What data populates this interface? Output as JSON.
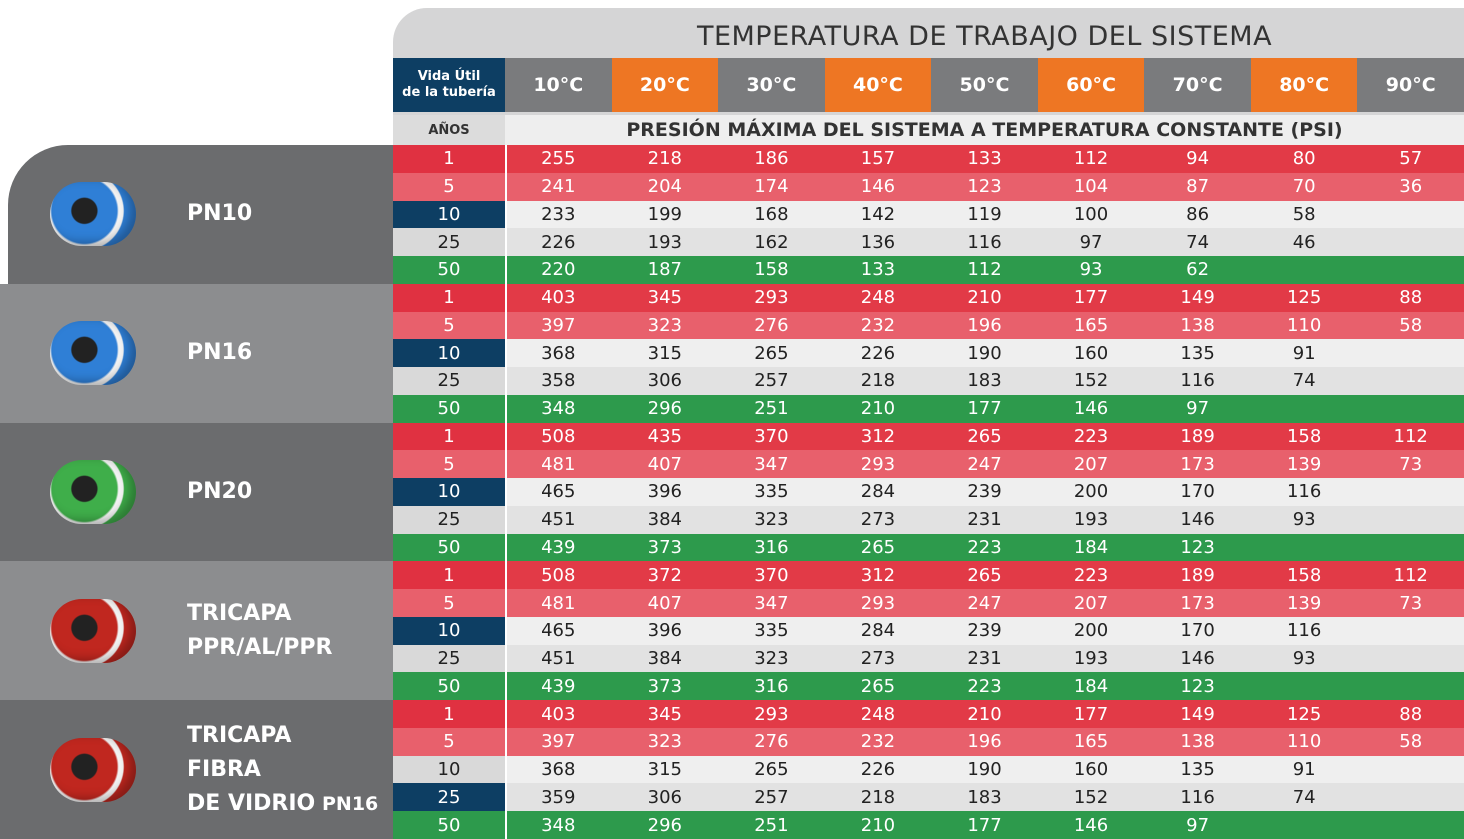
{
  "header": {
    "title": "TEMPERATURA DE TRABAJO DEL SISTEMA",
    "col_label": [
      "Vida Útil",
      "de la tubería"
    ],
    "years_label": "AÑOS",
    "subtitle": "PRESIÓN MÁXIMA DEL SISTEMA A TEMPERATURA CONSTANTE (PSI)"
  },
  "columns": [
    {
      "label": "10°C",
      "color": "#7a7b7d"
    },
    {
      "label": "20°C",
      "color": "#ee7623"
    },
    {
      "label": "30°C",
      "color": "#7a7b7d"
    },
    {
      "label": "40°C",
      "color": "#ee7623"
    },
    {
      "label": "50°C",
      "color": "#7a7b7d"
    },
    {
      "label": "60°C",
      "color": "#ee7623"
    },
    {
      "label": "70°C",
      "color": "#7a7b7d"
    },
    {
      "label": "80°C",
      "color": "#ee7623"
    },
    {
      "label": "90°C",
      "color": "#7a7b7d"
    }
  ],
  "groups": [
    {
      "name": [
        "PN10"
      ],
      "icon_color": "#2f7fd6",
      "rows": [
        {
          "years": 1,
          "values": [
            255,
            218,
            186,
            157,
            133,
            112,
            94,
            80,
            57
          ]
        },
        {
          "years": 5,
          "values": [
            241,
            204,
            174,
            146,
            123,
            104,
            87,
            70,
            36
          ]
        },
        {
          "years": 10,
          "values": [
            233,
            199,
            168,
            142,
            119,
            100,
            86,
            58,
            null
          ]
        },
        {
          "years": 25,
          "values": [
            226,
            193,
            162,
            136,
            116,
            97,
            74,
            46,
            null
          ]
        },
        {
          "years": 50,
          "values": [
            220,
            187,
            158,
            133,
            112,
            93,
            62,
            null,
            null
          ]
        }
      ]
    },
    {
      "name": [
        "PN16"
      ],
      "icon_color": "#2f7fd6",
      "rows": [
        {
          "years": 1,
          "values": [
            403,
            345,
            293,
            248,
            210,
            177,
            149,
            125,
            88
          ]
        },
        {
          "years": 5,
          "values": [
            397,
            323,
            276,
            232,
            196,
            165,
            138,
            110,
            58
          ]
        },
        {
          "years": 10,
          "values": [
            368,
            315,
            265,
            226,
            190,
            160,
            135,
            91,
            null
          ]
        },
        {
          "years": 25,
          "values": [
            358,
            306,
            257,
            218,
            183,
            152,
            116,
            74,
            null
          ]
        },
        {
          "years": 50,
          "values": [
            348,
            296,
            251,
            210,
            177,
            146,
            97,
            null,
            null
          ]
        }
      ]
    },
    {
      "name": [
        "PN20"
      ],
      "icon_color": "#3fae4a",
      "rows": [
        {
          "years": 1,
          "values": [
            508,
            435,
            370,
            312,
            265,
            223,
            189,
            158,
            112
          ]
        },
        {
          "years": 5,
          "values": [
            481,
            407,
            347,
            293,
            247,
            207,
            173,
            139,
            73
          ]
        },
        {
          "years": 10,
          "values": [
            465,
            396,
            335,
            284,
            239,
            200,
            170,
            116,
            null
          ]
        },
        {
          "years": 25,
          "values": [
            451,
            384,
            323,
            273,
            231,
            193,
            146,
            93,
            null
          ]
        },
        {
          "years": 50,
          "values": [
            439,
            373,
            316,
            265,
            223,
            184,
            123,
            null,
            null
          ]
        }
      ]
    },
    {
      "name": [
        "TRICAPA",
        "PPR/AL/PPR"
      ],
      "icon_color": "#c0271f",
      "rows": [
        {
          "years": 1,
          "values": [
            508,
            372,
            370,
            312,
            265,
            223,
            189,
            158,
            112
          ]
        },
        {
          "years": 5,
          "values": [
            481,
            407,
            347,
            293,
            247,
            207,
            173,
            139,
            73
          ]
        },
        {
          "years": 10,
          "values": [
            465,
            396,
            335,
            284,
            239,
            200,
            170,
            116,
            null
          ]
        },
        {
          "years": 25,
          "values": [
            451,
            384,
            323,
            273,
            231,
            193,
            146,
            93,
            null
          ]
        },
        {
          "years": 50,
          "values": [
            439,
            373,
            316,
            265,
            223,
            184,
            123,
            null,
            null
          ]
        }
      ]
    },
    {
      "name": [
        "TRICAPA",
        "FIBRA",
        "DE VIDRIO"
      ],
      "badge": "PN16",
      "icon_color": "#c0271f",
      "rows": [
        {
          "years": 1,
          "values": [
            403,
            345,
            293,
            248,
            210,
            177,
            149,
            125,
            88
          ]
        },
        {
          "years": 5,
          "values": [
            397,
            323,
            276,
            232,
            196,
            165,
            138,
            110,
            58
          ]
        },
        {
          "years": 10,
          "values": [
            368,
            315,
            265,
            226,
            190,
            160,
            135,
            91,
            null
          ]
        },
        {
          "years": 25,
          "values": [
            359,
            306,
            257,
            218,
            183,
            152,
            116,
            74,
            null
          ]
        },
        {
          "years": 50,
          "values": [
            348,
            296,
            251,
            210,
            177,
            146,
            97,
            null,
            null
          ]
        }
      ]
    }
  ]
}
